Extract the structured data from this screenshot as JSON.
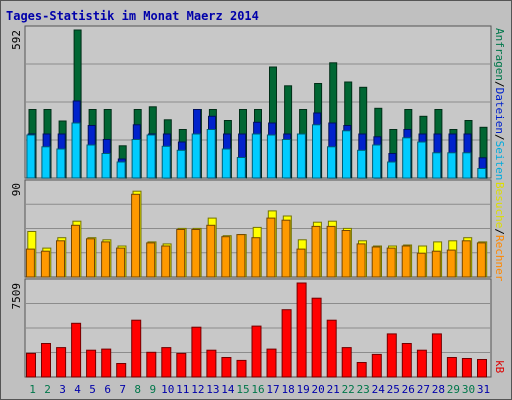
{
  "chart_data": {
    "type": "bar",
    "title": "Tages-Statistik im Monat Maerz 2014",
    "categories": [
      "1",
      "2",
      "3",
      "4",
      "5",
      "6",
      "7",
      "8",
      "9",
      "10",
      "11",
      "12",
      "13",
      "14",
      "15",
      "16",
      "17",
      "18",
      "19",
      "20",
      "21",
      "22",
      "23",
      "24",
      "25",
      "26",
      "27",
      "28",
      "29",
      "30",
      "31"
    ],
    "weekend_days": [
      "1",
      "2",
      "8",
      "9",
      "15",
      "16",
      "22",
      "23",
      "29",
      "30"
    ],
    "panels": [
      {
        "id": "top",
        "max_label": "592",
        "ylim": [
          0,
          592
        ],
        "series": [
          {
            "name": "Anfragen",
            "color": "#006633",
            "values": [
              274,
              274,
              228,
              592,
              274,
              274,
              129,
              274,
              285,
              233,
              194,
              274,
              274,
              230,
              274,
              274,
              444,
              369,
              274,
              378,
              461,
              384,
              363,
              279,
              194,
              274,
              247,
              274,
              194,
              230,
              203
            ]
          },
          {
            "name": "Dateien",
            "color": "#0022cc",
            "values": [
              176,
              176,
              176,
              308,
              210,
              154,
              76,
              213,
              176,
              176,
              144,
              274,
              247,
              176,
              176,
              223,
              220,
              176,
              165,
              260,
              220,
              210,
              176,
              165,
              98,
              194,
              176,
              176,
              176,
              176,
              81
            ]
          },
          {
            "name": "Seiten",
            "color": "#00ccff",
            "values": [
              172,
              125,
              116,
              220,
              132,
              98,
              64,
              154,
              172,
              127,
              111,
              176,
              194,
              116,
              82,
              176,
              172,
              154,
              176,
              213,
              125,
              189,
              111,
              132,
              64,
              161,
              144,
              101,
              101,
              101,
              38
            ]
          }
        ]
      },
      {
        "id": "middle",
        "max_label": "90",
        "ylim": [
          0,
          90
        ],
        "series": [
          {
            "name": "Besuche",
            "color": "#ffff00",
            "values": [
              44,
              28,
              38,
              54,
              38,
              36,
              30,
              83,
              34,
              32,
              47,
              47,
              57,
              40,
              41,
              48,
              64,
              59,
              36,
              53,
              54,
              47,
              35,
              30,
              30,
              31,
              30,
              34,
              35,
              38,
              34
            ]
          },
          {
            "name": "Rechner",
            "color": "#ff9900",
            "values": [
              27,
              25,
              35,
              50,
              37,
              34,
              28,
              80,
              33,
              30,
              46,
              46,
              50,
              39,
              41,
              38,
              57,
              55,
              27,
              49,
              49,
              45,
              32,
              29,
              28,
              30,
              23,
              25,
              26,
              35,
              33
            ]
          }
        ]
      },
      {
        "id": "bottom",
        "max_label": "7509",
        "ylim": [
          0,
          7509
        ],
        "series": [
          {
            "name": "kB",
            "color": "#ff0000",
            "values": [
              1887,
              2674,
              2345,
              4292,
              2143,
              2226,
              1079,
              4540,
              1975,
              2345,
              1887,
              3980,
              2144,
              1558,
              1326,
              4068,
              2226,
              5377,
              7509,
              6291,
              4540,
              2345,
              1159,
              1803,
              3440,
              2674,
              2143,
              3440,
              1558,
              1478,
              1399
            ]
          }
        ]
      }
    ],
    "legend_right": {
      "top": [
        "Anfragen",
        "/",
        "Dateien",
        "/",
        "Seiten"
      ],
      "middle": [
        "Besuche",
        "/",
        "Rechner"
      ],
      "bottom": [
        "kB"
      ]
    },
    "grid": true,
    "xlabel": "",
    "ylabel": ""
  },
  "colors": {
    "background": "#c0c0c0",
    "plot_background": "#c8c8c8",
    "title": "#0000aa",
    "weekday_label": "#0000aa",
    "weekend_label": "#00774a",
    "border_dark": "#555555"
  }
}
